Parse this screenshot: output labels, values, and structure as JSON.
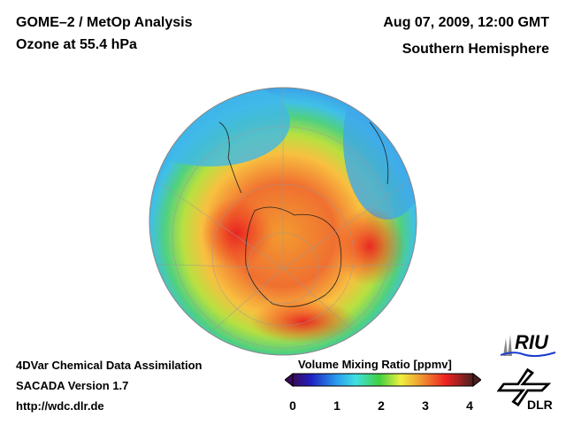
{
  "header": {
    "title_line1": "GOME–2 / MetOp Analysis",
    "title_line2": "Ozone at 55.4 hPa",
    "date": "Aug 07, 2009, 12:00 GMT",
    "region": "Southern Hemisphere"
  },
  "footer": {
    "method": "4DVar Chemical Data Assimilation",
    "version": "SACADA Version 1.7",
    "url": "http://wdc.dlr.de"
  },
  "colorbar": {
    "title": "Volume Mixing Ratio [ppmv]",
    "ticks": [
      "0",
      "1",
      "2",
      "3",
      "4"
    ],
    "range": [
      0,
      4
    ],
    "colors": [
      "#3a0a5a",
      "#2020c0",
      "#2aa0f0",
      "#40e0e0",
      "#40d040",
      "#f0f040",
      "#f09030",
      "#f02020",
      "#4a2020"
    ]
  },
  "logos": {
    "riu": "RIU",
    "dlr": "DLR"
  }
}
